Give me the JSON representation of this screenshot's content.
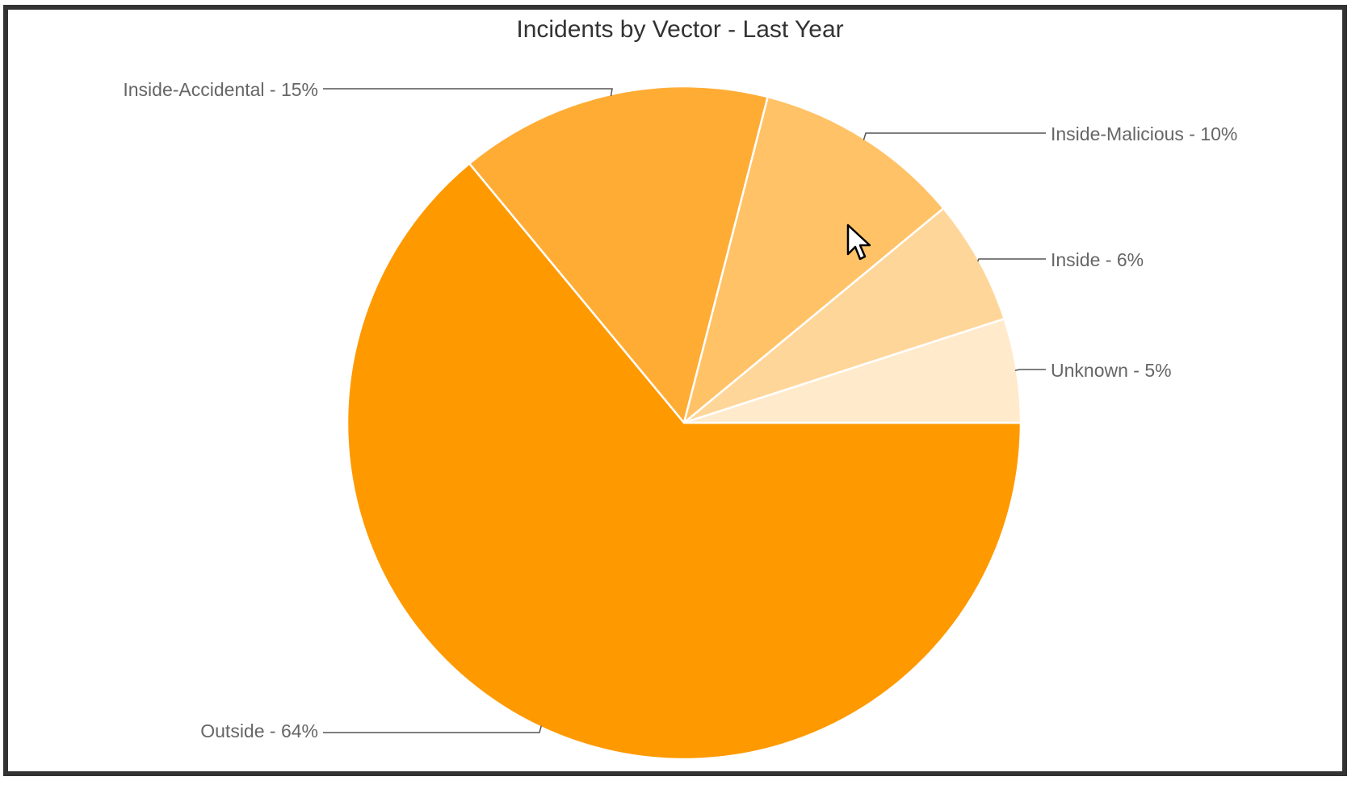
{
  "chart_data": {
    "type": "pie",
    "title": "Incidents by Vector - Last Year",
    "slices": [
      {
        "name": "Outside",
        "value": 64,
        "label": "Outside - 64%",
        "color": "#FF9900"
      },
      {
        "name": "Inside-Accidental",
        "value": 15,
        "label": "Inside-Accidental - 15%",
        "color": "#FFAC35"
      },
      {
        "name": "Inside-Malicious",
        "value": 10,
        "label": "Inside-Malicious - 10%",
        "color": "#FFC266"
      },
      {
        "name": "Inside",
        "value": 6,
        "label": "Inside - 6%",
        "color": "#FFD699"
      },
      {
        "name": "Unknown",
        "value": 5,
        "label": "Unknown - 5%",
        "color": "#FFEACC"
      }
    ]
  }
}
